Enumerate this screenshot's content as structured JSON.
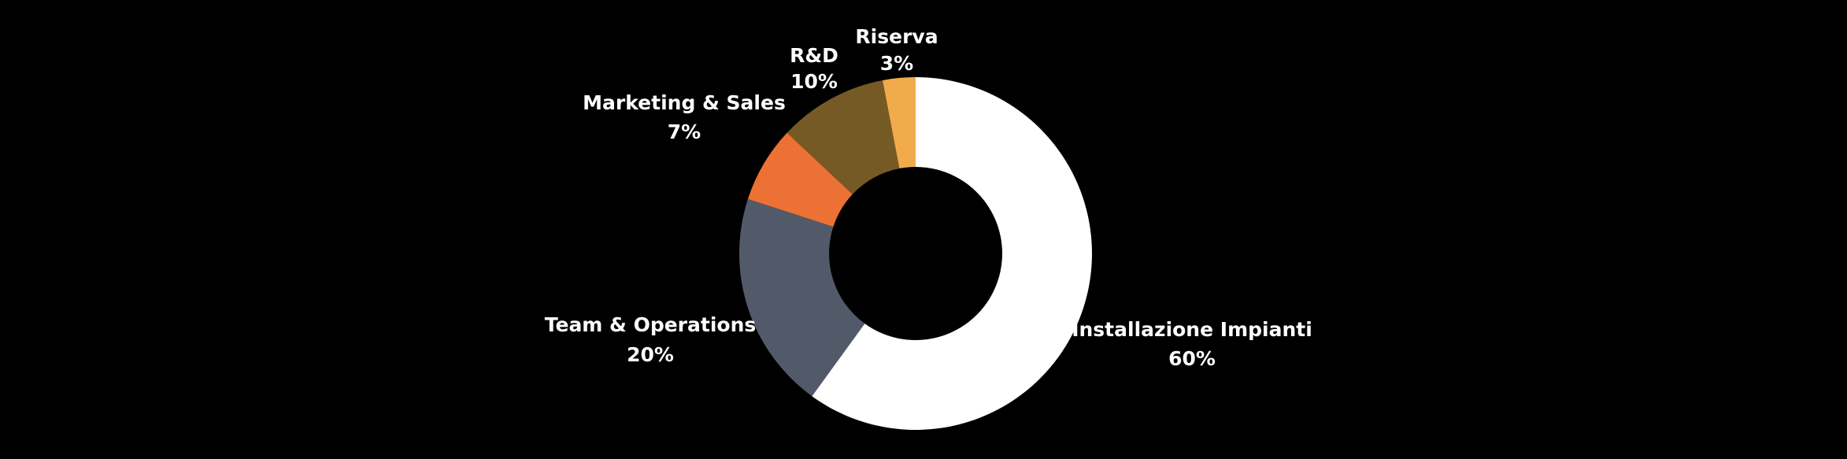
{
  "chart_data": {
    "type": "pie",
    "donut": true,
    "start_angle_deg": 0,
    "direction": "clockwise",
    "slices": [
      {
        "label": "Installazione Impianti",
        "value": 60,
        "value_label": "60%",
        "color": "#ffffff"
      },
      {
        "label": "Team & Operations",
        "value": 20,
        "value_label": "20%",
        "color": "#525a6a"
      },
      {
        "label": "Marketing & Sales",
        "value": 7,
        "value_label": "7%",
        "color": "#ec7134"
      },
      {
        "label": "R&D",
        "value": 10,
        "value_label": "10%",
        "color": "#765a26"
      },
      {
        "label": "Riserva",
        "value": 3,
        "value_label": "3%",
        "color": "#f2ab4b"
      }
    ],
    "legend": "none",
    "grid": false
  },
  "colors": {
    "background": "#000000",
    "label_text": "#ffffff"
  }
}
